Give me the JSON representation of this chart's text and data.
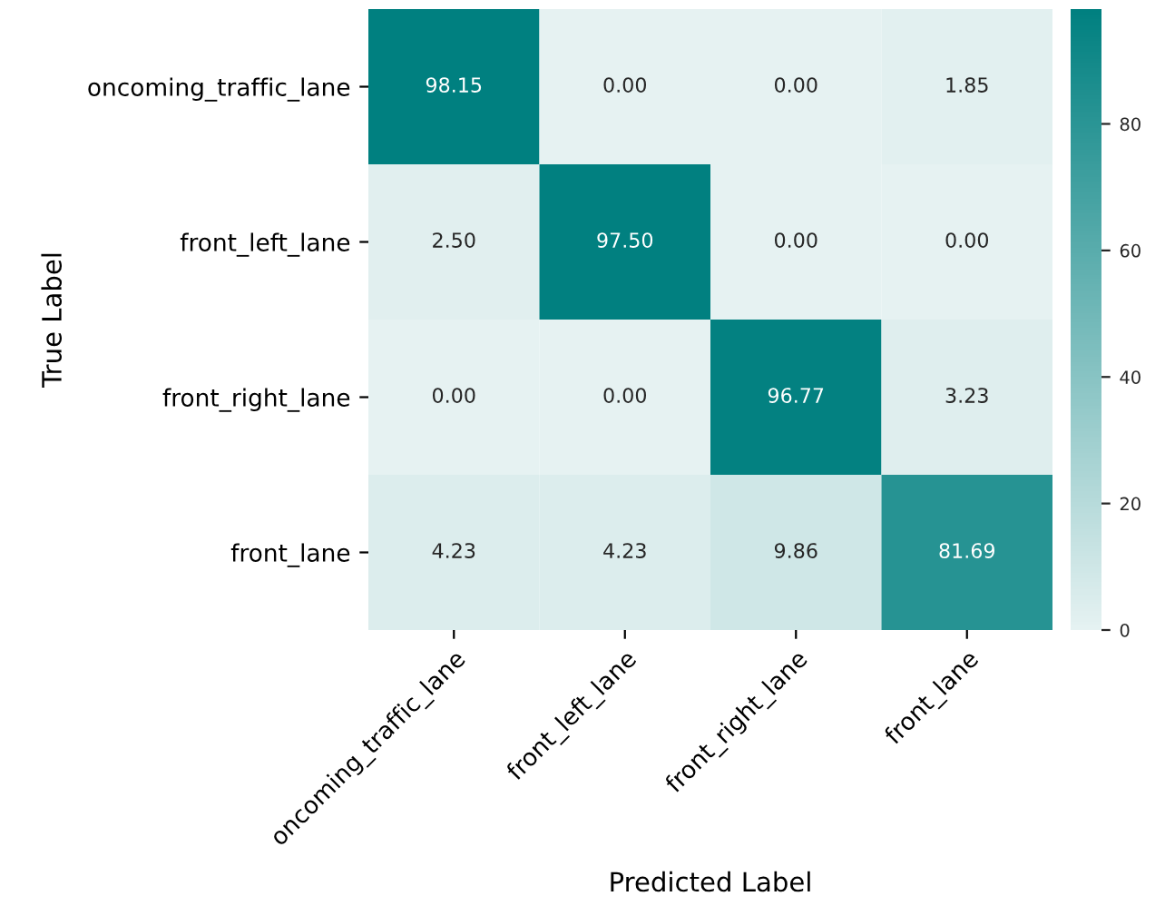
{
  "chart_data": {
    "type": "heatmap",
    "xlabel": "Predicted Label",
    "ylabel": "True Label",
    "categories": [
      "oncoming_traffic_lane",
      "front_left_lane",
      "front_right_lane",
      "front_lane"
    ],
    "y_categories": [
      "oncoming_traffic_lane",
      "front_left_lane",
      "front_right_lane",
      "front_lane"
    ],
    "cells": [
      [
        98.15,
        0.0,
        0.0,
        1.85
      ],
      [
        2.5,
        97.5,
        0.0,
        0.0
      ],
      [
        0.0,
        0.0,
        96.77,
        3.23
      ],
      [
        4.23,
        4.23,
        9.86,
        81.69
      ]
    ],
    "cell_labels": [
      [
        "98.15",
        "0.00",
        "0.00",
        "1.85"
      ],
      [
        "2.50",
        "97.50",
        "0.00",
        "0.00"
      ],
      [
        "0.00",
        "0.00",
        "96.77",
        "3.23"
      ],
      [
        "4.23",
        "4.23",
        "9.86",
        "81.69"
      ]
    ],
    "clim": [
      0,
      98.15
    ],
    "cticks": [
      0,
      20,
      40,
      60,
      80
    ]
  }
}
